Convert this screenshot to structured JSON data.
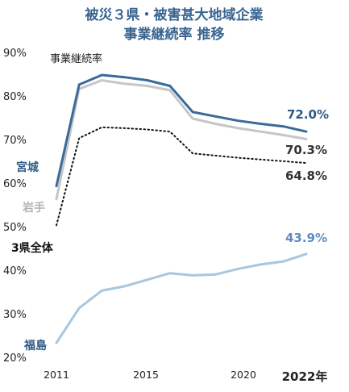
{
  "chart_data": {
    "type": "line",
    "title": [
      "被災３県・被害甚大地域企業",
      "事業継続率 推移"
    ],
    "ylabel": "事業継続率",
    "ylim": [
      20,
      90
    ],
    "yticks": [
      "20%",
      "30%",
      "40%",
      "50%",
      "60%",
      "70%",
      "80%",
      "90%"
    ],
    "xlim": [
      2011,
      2022
    ],
    "xticks": [
      "2011",
      "2015",
      "2020",
      "2022年"
    ],
    "x": [
      2011,
      2012,
      2013,
      2014,
      2015,
      2016,
      2017,
      2018,
      2019,
      2020,
      2021,
      2022
    ],
    "grid": false,
    "series": [
      {
        "name": "宮城",
        "color": "#3a6b9a",
        "style": "solid",
        "values": [
          59.5,
          82.8,
          85.0,
          84.5,
          83.8,
          82.5,
          76.5,
          75.5,
          74.5,
          73.8,
          73.2,
          72.0
        ],
        "end_label": "72.0%"
      },
      {
        "name": "岩手",
        "color": "#c6c6c6",
        "style": "solid",
        "values": [
          56.5,
          81.8,
          83.8,
          83.0,
          82.5,
          81.5,
          75.0,
          73.8,
          72.8,
          72.0,
          71.2,
          70.3
        ],
        "end_label": "70.3%"
      },
      {
        "name": "3県全体",
        "color": "#111111",
        "style": "dotted",
        "values": [
          50.5,
          70.5,
          73.0,
          72.8,
          72.5,
          72.0,
          67.0,
          66.5,
          66.0,
          65.6,
          65.2,
          64.8
        ],
        "end_label": "64.8%"
      },
      {
        "name": "福島",
        "color": "#a8c7de",
        "style": "solid",
        "values": [
          23.5,
          31.5,
          35.5,
          36.5,
          38.0,
          39.5,
          39.0,
          39.2,
          40.5,
          41.5,
          42.2,
          43.9
        ],
        "end_label": "43.9%"
      }
    ]
  }
}
